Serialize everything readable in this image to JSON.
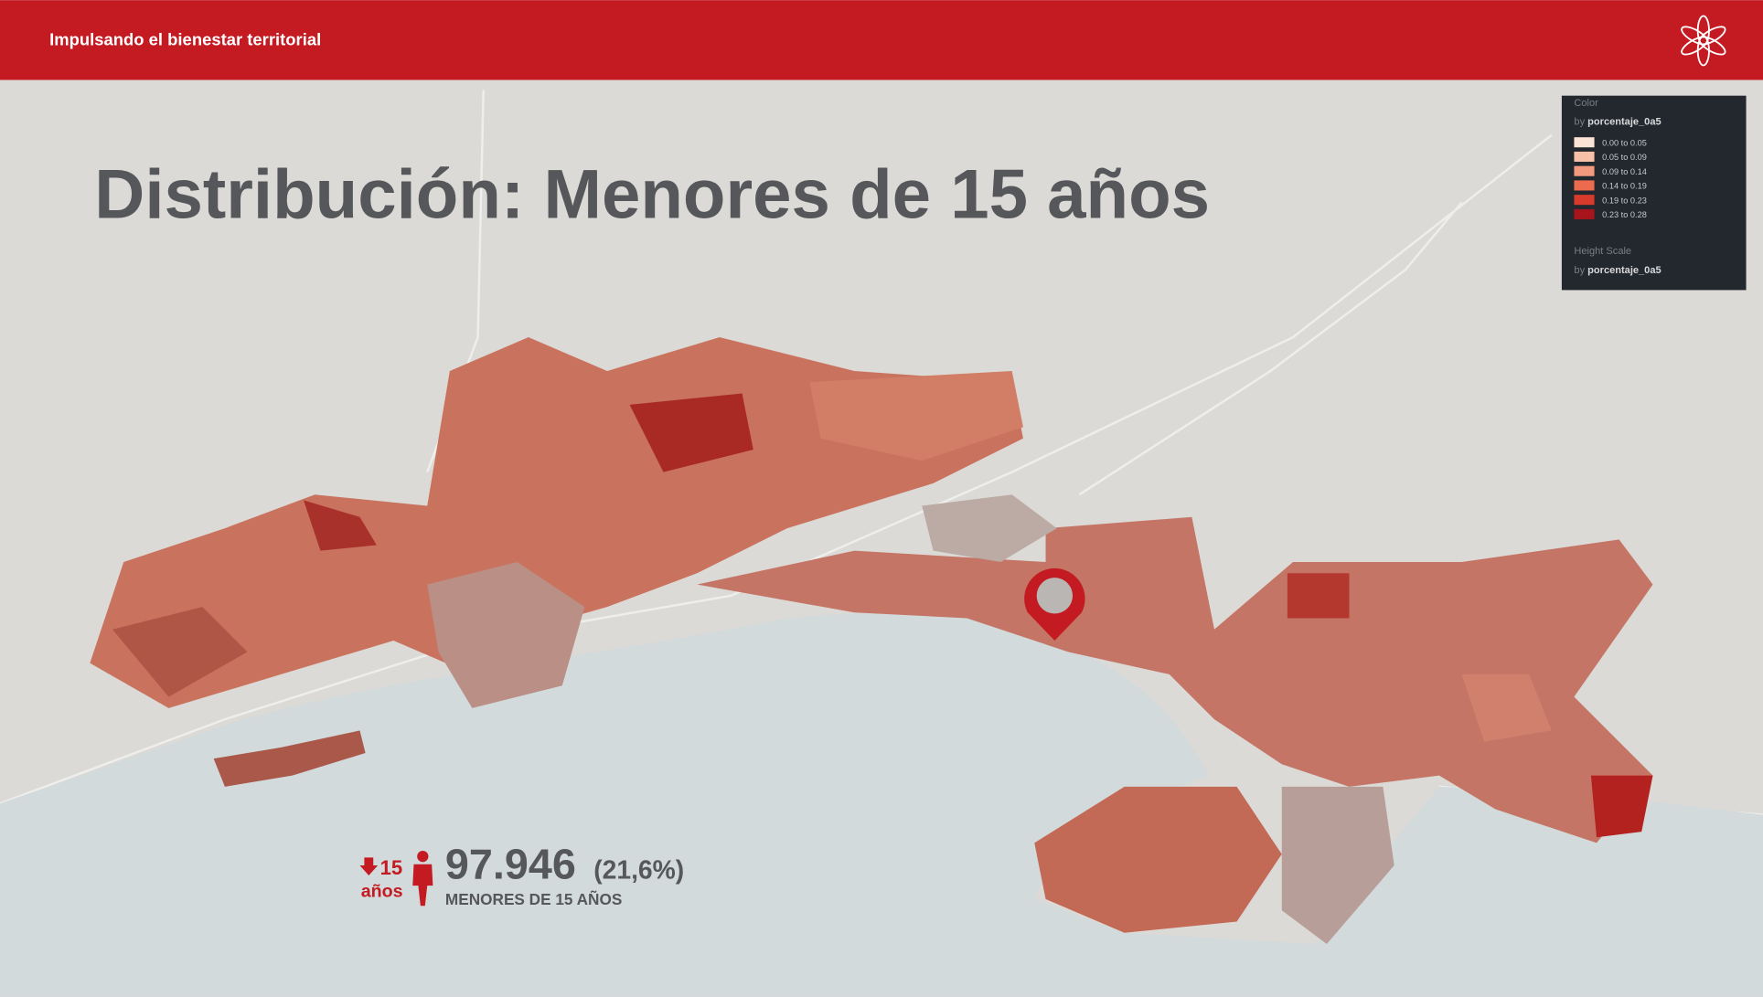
{
  "header": {
    "title": "Impulsando el bienestar territorial"
  },
  "slide": {
    "title": "Distribución: Menores de 15 años"
  },
  "legend": {
    "color_title": "Color",
    "color_by": {
      "prefix": "by",
      "field": "porcentaje_0a5"
    },
    "items": [
      {
        "label": "0.00 to 0.05",
        "color": "#fbe3d6"
      },
      {
        "label": "0.05 to 0.09",
        "color": "#f8c0a7"
      },
      {
        "label": "0.09 to 0.14",
        "color": "#f39a7e"
      },
      {
        "label": "0.14 to 0.19",
        "color": "#ec6b4f"
      },
      {
        "label": "0.19 to 0.23",
        "color": "#d83a2c"
      },
      {
        "label": "0.23 to 0.28",
        "color": "#a8141b"
      }
    ],
    "height_title": "Height Scale",
    "height_by": {
      "prefix": "by",
      "field": "porcentaje_0a5"
    }
  },
  "stat": {
    "icon_number": "15",
    "icon_unit": "años",
    "value": "97.946",
    "percent": "(21,6%)",
    "label": "MENORES DE 15 AÑOS"
  }
}
